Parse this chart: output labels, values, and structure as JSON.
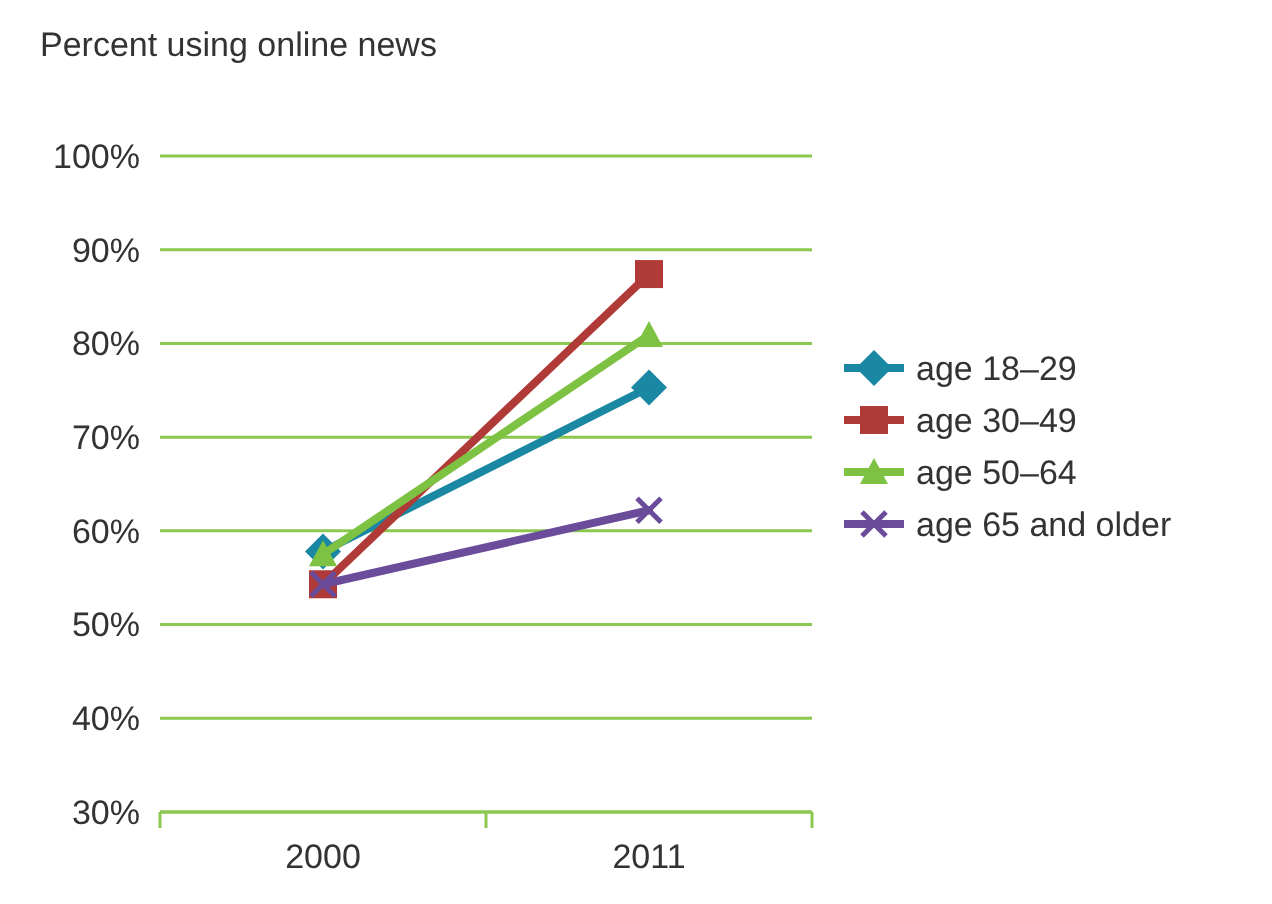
{
  "chart_data": {
    "type": "line",
    "ylabel": "Percent using online news",
    "categories": [
      "2000",
      "2011"
    ],
    "series": [
      {
        "name": "age 18–29",
        "color": "#1a87a3",
        "values": [
          57.8,
          75.3
        ],
        "marker": "diamond"
      },
      {
        "name": "age 30–49",
        "color": "#b03a37",
        "values": [
          54.3,
          87.4
        ],
        "marker": "square"
      },
      {
        "name": "age 50–64",
        "color": "#7dc242",
        "values": [
          57.5,
          80.9
        ],
        "marker": "triangle"
      },
      {
        "name": "age 65 and older",
        "color": "#6b4c9a",
        "values": [
          54.3,
          62.2
        ],
        "marker": "cross"
      }
    ],
    "ylim": [
      30,
      100
    ],
    "yticks": [
      {
        "value": 30,
        "label": "30%"
      },
      {
        "value": 40,
        "label": "40%"
      },
      {
        "value": 50,
        "label": "50%"
      },
      {
        "value": 60,
        "label": "60%"
      },
      {
        "value": 70,
        "label": "70%"
      },
      {
        "value": 80,
        "label": "80%"
      },
      {
        "value": 90,
        "label": "90%"
      },
      {
        "value": 100,
        "label": "100%"
      }
    ],
    "grid": "y",
    "legend": "right",
    "line_style": "solid"
  }
}
